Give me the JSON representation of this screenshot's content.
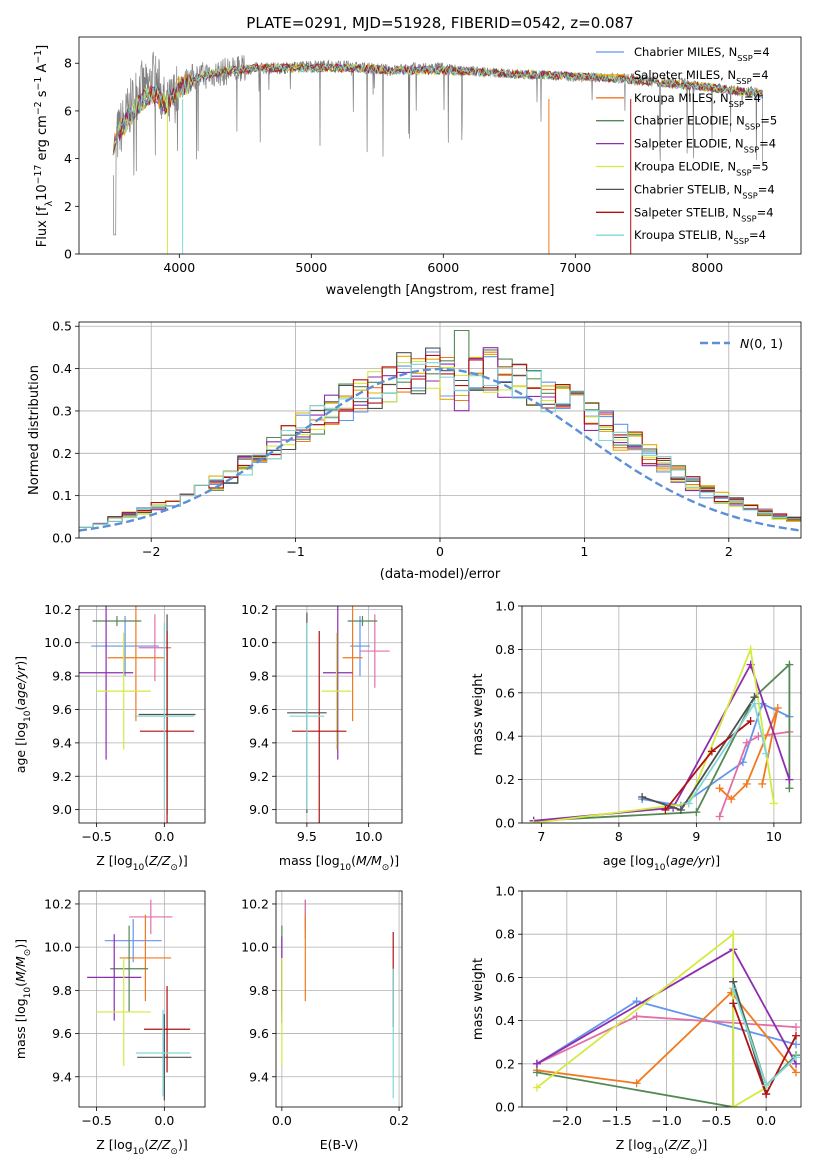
{
  "chart_data": [
    {
      "id": "spectrum",
      "type": "line",
      "title": "PLATE=0291, MJD=51928, FIBERID=0542, z=0.087",
      "xlabel": "wavelength [Angstrom, rest frame]",
      "ylabel": "Flux [f_λ 10^-17 erg cm^-2 s^-1 A^-1]",
      "xlim": [
        3240,
        8710
      ],
      "ylim": [
        0,
        9.1
      ],
      "xticks": [
        4000,
        5000,
        6000,
        7000,
        8000
      ],
      "yticks": [
        0,
        2,
        4,
        6,
        8
      ],
      "legend_position": "right",
      "series": [
        {
          "name": "Chabrier MILES, N_SSP=4",
          "color": "#6495ed"
        },
        {
          "name": "Salpeter MILES, N_SSP=4",
          "color": "#e6ac00"
        },
        {
          "name": "Kroupa MILES, N_SSP=4",
          "color": "#f07a20"
        },
        {
          "name": "Chabrier ELODIE, N_SSP=5",
          "color": "#558855"
        },
        {
          "name": "Salpeter ELODIE, N_SSP=4",
          "color": "#8e2db0"
        },
        {
          "name": "Kroupa ELODIE, N_SSP=5",
          "color": "#d4ea40"
        },
        {
          "name": "Chabrier STELIB, N_SSP=4",
          "color": "#505050"
        },
        {
          "name": "Salpeter STELIB, N_SSP=4",
          "color": "#b01010"
        },
        {
          "name": "Kroupa STELIB, N_SSP=4",
          "color": "#80d8d8"
        }
      ],
      "data_series": {
        "name": "data",
        "color": "#808080",
        "x": [
          3500,
          3550,
          3600,
          3650,
          3700,
          3750,
          3800,
          3850,
          3900,
          3950,
          4000,
          4100,
          4200,
          4300,
          4400,
          4600,
          4800,
          5000,
          5200,
          5400,
          5600,
          5800,
          6000,
          6200,
          6400,
          6600,
          6800,
          7000,
          7200,
          7400,
          7600,
          7800,
          8000,
          8200,
          8400
        ],
        "y": [
          4.5,
          5.2,
          5.8,
          6.4,
          7.0,
          6.8,
          7.4,
          7.0,
          6.0,
          6.5,
          7.0,
          7.4,
          7.5,
          7.6,
          7.7,
          7.8,
          7.8,
          7.9,
          7.9,
          7.8,
          7.7,
          7.8,
          7.8,
          7.7,
          7.6,
          7.5,
          7.5,
          7.4,
          7.4,
          7.4,
          7.3,
          7.2,
          7.0,
          6.9,
          6.8
        ]
      },
      "model_points": {
        "x": [
          3500,
          3600,
          3700,
          3800,
          3900,
          4000,
          4200,
          4400,
          4600,
          4800,
          5000,
          5300,
          5600,
          6000,
          6400,
          6800,
          7200,
          7600,
          8000,
          8400
        ],
        "y": [
          4.6,
          5.6,
          6.3,
          6.8,
          6.3,
          7.0,
          7.5,
          7.7,
          7.8,
          7.8,
          7.8,
          7.8,
          7.7,
          7.7,
          7.6,
          7.5,
          7.4,
          7.2,
          7.0,
          6.7
        ]
      }
    },
    {
      "id": "residuals",
      "type": "line",
      "xlabel": "(data-model)/error",
      "ylabel": "Normed distribution",
      "xlim": [
        -2.5,
        2.5
      ],
      "ylim": [
        0,
        0.51
      ],
      "xticks": [
        -2,
        -1,
        0,
        1,
        2
      ],
      "yticks": [
        0.0,
        0.1,
        0.2,
        0.3,
        0.4,
        0.5
      ],
      "legend_label": "N(0,1)",
      "legend_position": "upper right",
      "bin_edges_start": -2.5,
      "bin_width": 0.1,
      "hist_values": [
        0.03,
        0.035,
        0.045,
        0.055,
        0.065,
        0.075,
        0.085,
        0.1,
        0.115,
        0.13,
        0.15,
        0.17,
        0.19,
        0.215,
        0.24,
        0.26,
        0.28,
        0.3,
        0.32,
        0.34,
        0.355,
        0.37,
        0.385,
        0.395,
        0.4,
        0.38,
        0.34,
        0.39,
        0.395,
        0.385,
        0.375,
        0.36,
        0.345,
        0.33,
        0.31,
        0.29,
        0.265,
        0.24,
        0.22,
        0.195,
        0.175,
        0.15,
        0.13,
        0.11,
        0.095,
        0.085,
        0.07,
        0.06,
        0.05,
        0.045
      ]
    },
    {
      "id": "age_vs_Z",
      "type": "scatter",
      "xlabel": "Z [log10(Z/Z☉)]",
      "ylabel": "age  [log10(age/yr)]",
      "xlim": [
        -0.63,
        0.3
      ],
      "ylim": [
        8.92,
        10.22
      ],
      "xticks": [
        -0.5,
        0.0
      ],
      "yticks": [
        9.0,
        9.2,
        9.4,
        9.6,
        9.8,
        10.0,
        10.2
      ],
      "points": [
        {
          "x": -0.29,
          "y": 9.98,
          "xerr": 0.25,
          "yerr": 0.18,
          "color": "#6495ed"
        },
        {
          "x": -0.07,
          "y": 9.97,
          "xerr": 0.12,
          "yerr": 0.2,
          "color": "#e46fa8"
        },
        {
          "x": -0.21,
          "y": 9.91,
          "xerr": 0.21,
          "yerr": 0.38,
          "color": "#f07a20"
        },
        {
          "x": -0.35,
          "y": 10.13,
          "xerr": 0.18,
          "yerr": 0.03,
          "color": "#558855"
        },
        {
          "x": -0.43,
          "y": 9.82,
          "xerr": 0.2,
          "yerr": 0.52,
          "color": "#8e2db0"
        },
        {
          "x": -0.3,
          "y": 9.71,
          "xerr": 0.2,
          "yerr": 0.35,
          "color": "#d4ea40"
        },
        {
          "x": 0.02,
          "y": 9.57,
          "xerr": 0.21,
          "yerr": 0.6,
          "color": "#505050"
        },
        {
          "x": 0.02,
          "y": 9.47,
          "xerr": 0.2,
          "yerr": 0.6,
          "color": "#b01010"
        },
        {
          "x": 0.0,
          "y": 9.56,
          "xerr": 0.22,
          "yerr": 0.56,
          "color": "#80d8d8"
        }
      ]
    },
    {
      "id": "age_vs_mass",
      "type": "scatter",
      "xlabel": "mass [log10(M/M☉)]",
      "xlim": [
        9.25,
        10.27
      ],
      "ylim": [
        8.92,
        10.22
      ],
      "xticks": [
        9.5,
        10.0
      ],
      "yticks": [
        9.0,
        9.2,
        9.4,
        9.6,
        9.8,
        10.0,
        10.2
      ],
      "points": [
        {
          "x": 9.93,
          "y": 9.98,
          "xerr": 0.08,
          "yerr": 0.18,
          "color": "#6495ed"
        },
        {
          "x": 10.05,
          "y": 9.95,
          "xerr": 0.12,
          "yerr": 0.22,
          "color": "#e46fa8"
        },
        {
          "x": 9.87,
          "y": 9.91,
          "xerr": 0.08,
          "yerr": 0.38,
          "color": "#f07a20"
        },
        {
          "x": 9.95,
          "y": 10.13,
          "xerr": 0.12,
          "yerr": 0.03,
          "color": "#558855"
        },
        {
          "x": 9.75,
          "y": 9.82,
          "xerr": 0.12,
          "yerr": 0.52,
          "color": "#8e2db0"
        },
        {
          "x": 9.74,
          "y": 9.71,
          "xerr": 0.12,
          "yerr": 0.35,
          "color": "#d4ea40"
        },
        {
          "x": 9.5,
          "y": 9.58,
          "xerr": 0.16,
          "yerr": 0.6,
          "color": "#505050"
        },
        {
          "x": 9.6,
          "y": 9.47,
          "xerr": 0.22,
          "yerr": 0.6,
          "color": "#b01010"
        },
        {
          "x": 9.5,
          "y": 9.56,
          "xerr": 0.14,
          "yerr": 0.56,
          "color": "#80d8d8"
        }
      ]
    },
    {
      "id": "weight_vs_age",
      "type": "line",
      "xlabel": "age  [log10(age/yr)]",
      "ylabel": "mass weight",
      "xlim": [
        6.75,
        10.35
      ],
      "ylim": [
        0,
        1.0
      ],
      "xticks": [
        7,
        8,
        9,
        10
      ],
      "yticks": [
        0.0,
        0.2,
        0.4,
        0.6,
        0.8,
        1.0
      ],
      "series": [
        {
          "color": "#6495ed",
          "x": [
            8.3,
            8.8,
            9.6,
            9.85,
            10.2
          ],
          "y": [
            0.11,
            0.08,
            0.28,
            0.55,
            0.49
          ]
        },
        {
          "color": "#e46fa8",
          "x": [
            9.3,
            9.65,
            9.8,
            10.2
          ],
          "y": [
            0.03,
            0.37,
            0.4,
            0.42
          ]
        },
        {
          "color": "#f07a20",
          "x": [
            9.3,
            9.45,
            9.65,
            10.05,
            9.85
          ],
          "y": [
            0.16,
            0.11,
            0.18,
            0.53,
            0.18
          ]
        },
        {
          "color": "#558855",
          "x": [
            6.9,
            9.0,
            9.75,
            10.2,
            10.2
          ],
          "y": [
            0.01,
            0.05,
            0.58,
            0.73,
            0.16
          ]
        },
        {
          "color": "#8e2db0",
          "x": [
            6.9,
            8.7,
            9.7,
            10.2
          ],
          "y": [
            0.01,
            0.07,
            0.73,
            0.2
          ]
        },
        {
          "color": "#d4ea40",
          "x": [
            6.9,
            8.9,
            9.7,
            10.0
          ],
          "y": [
            0.0,
            0.09,
            0.8,
            0.09
          ]
        },
        {
          "color": "#505050",
          "x": [
            8.3,
            8.8,
            9.75
          ],
          "y": [
            0.12,
            0.06,
            0.58
          ]
        },
        {
          "color": "#b01010",
          "x": [
            8.6,
            9.2,
            9.7
          ],
          "y": [
            0.06,
            0.33,
            0.47
          ]
        },
        {
          "color": "#80d8d8",
          "x": [
            8.9,
            9.75,
            9.9
          ],
          "y": [
            0.09,
            0.55,
            0.32
          ]
        }
      ]
    },
    {
      "id": "mass_vs_Z",
      "type": "scatter",
      "xlabel": "Z [log10(Z/Z☉)]",
      "ylabel": "mass [log10(M/M☉)]",
      "xlim": [
        -0.63,
        0.3
      ],
      "ylim": [
        9.26,
        10.26
      ],
      "xticks": [
        -0.5,
        0.0
      ],
      "yticks": [
        9.4,
        9.6,
        9.8,
        10.0,
        10.2
      ],
      "points": [
        {
          "x": -0.23,
          "y": 10.03,
          "xerr": 0.21,
          "yerr": 0.1,
          "color": "#6495ed"
        },
        {
          "x": -0.1,
          "y": 10.14,
          "xerr": 0.16,
          "yerr": 0.08,
          "color": "#e46fa8"
        },
        {
          "x": -0.14,
          "y": 9.95,
          "xerr": 0.19,
          "yerr": 0.2,
          "color": "#f07a20"
        },
        {
          "x": -0.26,
          "y": 9.9,
          "xerr": 0.14,
          "yerr": 0.2,
          "color": "#558855"
        },
        {
          "x": -0.37,
          "y": 9.86,
          "xerr": 0.2,
          "yerr": 0.2,
          "color": "#8e2db0"
        },
        {
          "x": -0.3,
          "y": 9.7,
          "xerr": 0.2,
          "yerr": 0.25,
          "color": "#d4ea40"
        },
        {
          "x": 0.0,
          "y": 9.49,
          "xerr": 0.2,
          "yerr": 0.2,
          "color": "#505050"
        },
        {
          "x": 0.02,
          "y": 9.62,
          "xerr": 0.17,
          "yerr": 0.2,
          "color": "#b01010"
        },
        {
          "x": -0.01,
          "y": 9.51,
          "xerr": 0.2,
          "yerr": 0.2,
          "color": "#80d8d8"
        }
      ]
    },
    {
      "id": "mass_vs_EBV",
      "type": "scatter",
      "xlabel": "E(B-V)",
      "xlim": [
        -0.01,
        0.205
      ],
      "ylim": [
        9.26,
        10.26
      ],
      "xticks": [
        0.0,
        0.2
      ],
      "yticks": [
        9.4,
        9.6,
        9.8,
        10.0,
        10.2
      ],
      "points": [
        {
          "x": 0.04,
          "y": 10.15,
          "xerr": 0,
          "yerr": 0.07,
          "color": "#6495ed"
        },
        {
          "x": 0.04,
          "y": 10.13,
          "xerr": 0,
          "yerr": 0.09,
          "color": "#e46fa8"
        },
        {
          "x": 0.04,
          "y": 9.95,
          "xerr": 0,
          "yerr": 0.2,
          "color": "#f07a20"
        },
        {
          "x": 0.0,
          "y": 9.9,
          "xerr": 0,
          "yerr": 0.2,
          "color": "#558855"
        },
        {
          "x": 0.0,
          "y": 9.85,
          "xerr": 0,
          "yerr": 0.2,
          "color": "#8e2db0"
        },
        {
          "x": 0.0,
          "y": 9.7,
          "xerr": 0,
          "yerr": 0.25,
          "color": "#d4ea40"
        },
        {
          "x": 0.19,
          "y": 9.85,
          "xerr": 0,
          "yerr": 0.22,
          "color": "#b01010"
        },
        {
          "x": 0.19,
          "y": 9.6,
          "xerr": 0,
          "yerr": 0.3,
          "color": "#80d8d8"
        }
      ]
    },
    {
      "id": "weight_vs_Z",
      "type": "line",
      "xlabel": "Z [log10(Z/Z☉)]",
      "ylabel": "mass weight",
      "xlim": [
        -2.45,
        0.35
      ],
      "ylim": [
        0,
        1.0
      ],
      "xticks": [
        -2.0,
        -1.5,
        -1.0,
        -0.5,
        0.0
      ],
      "yticks": [
        0.0,
        0.2,
        0.4,
        0.6,
        0.8,
        1.0
      ],
      "series": [
        {
          "color": "#6495ed",
          "x": [
            -2.3,
            -1.3,
            0.3
          ],
          "y": [
            0.2,
            0.49,
            0.29
          ]
        },
        {
          "color": "#e46fa8",
          "x": [
            -2.3,
            -1.3,
            0.3
          ],
          "y": [
            0.2,
            0.42,
            0.37
          ]
        },
        {
          "color": "#f07a20",
          "x": [
            -2.3,
            -1.3,
            -0.35,
            0.3
          ],
          "y": [
            0.17,
            0.11,
            0.53,
            0.16
          ]
        },
        {
          "color": "#558855",
          "x": [
            -2.3,
            -0.33,
            -0.33,
            0.0,
            0.3
          ],
          "y": [
            0.16,
            0.0,
            0.58,
            0.1,
            0.24
          ]
        },
        {
          "color": "#8e2db0",
          "x": [
            -2.3,
            -0.33,
            0.3
          ],
          "y": [
            0.2,
            0.73,
            0.2
          ]
        },
        {
          "color": "#d4ea40",
          "x": [
            -2.3,
            -0.33,
            -0.33,
            0.0
          ],
          "y": [
            0.09,
            0.8,
            0.0,
            0.09
          ]
        },
        {
          "color": "#505050",
          "x": [
            -0.33,
            0.0
          ],
          "y": [
            0.58,
            0.06
          ]
        },
        {
          "color": "#b01010",
          "x": [
            -0.33,
            0.0,
            0.3
          ],
          "y": [
            0.48,
            0.06,
            0.33
          ]
        },
        {
          "color": "#80d8d8",
          "x": [
            -0.33,
            0.0,
            0.3
          ],
          "y": [
            0.55,
            0.1,
            0.23
          ]
        }
      ]
    }
  ]
}
